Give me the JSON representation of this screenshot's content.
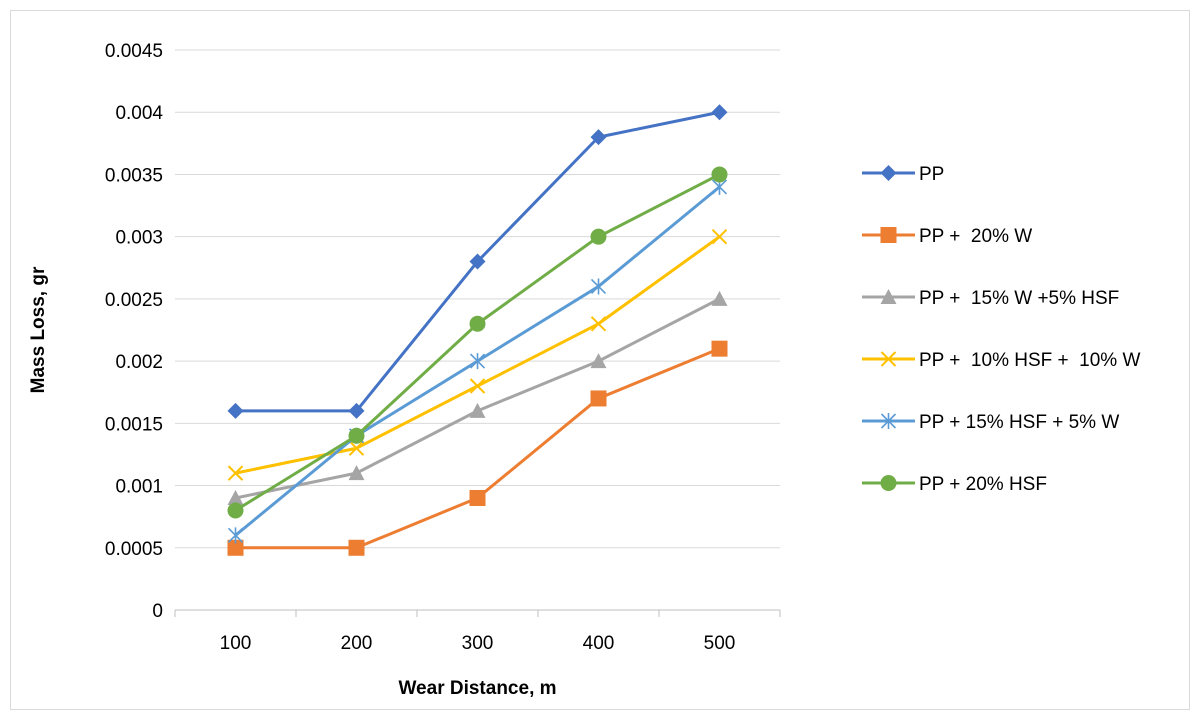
{
  "chart_data": {
    "type": "line",
    "title": "",
    "xlabel": "Wear Distance, m",
    "ylabel": "Mass Loss, gr",
    "categories": [
      "100",
      "200",
      "300",
      "400",
      "500"
    ],
    "y_ticks": [
      "0",
      "0.0005",
      "0.001",
      "0.0015",
      "0.002",
      "0.0025",
      "0.003",
      "0.0035",
      "0.004",
      "0.0045"
    ],
    "ylim": [
      0,
      0.0045
    ],
    "grid": true,
    "legend_position": "right",
    "series": [
      {
        "name": "PP",
        "values": [
          0.0016,
          0.0016,
          0.0028,
          0.0038,
          0.004
        ],
        "color": "#4472c4",
        "marker": "diamond"
      },
      {
        "name": "PP +  20% W",
        "values": [
          0.0005,
          0.0005,
          0.0009,
          0.0017,
          0.0021
        ],
        "color": "#ed7d31",
        "marker": "square"
      },
      {
        "name": "PP +  15% W +5% HSF",
        "values": [
          0.0009,
          0.0011,
          0.0016,
          0.002,
          0.0025
        ],
        "color": "#a5a5a5",
        "marker": "triangle"
      },
      {
        "name": "PP +  10% HSF +  10% W",
        "values": [
          0.0011,
          0.0013,
          0.0018,
          0.0023,
          0.003
        ],
        "color": "#ffc000",
        "marker": "x"
      },
      {
        "name": "PP + 15% HSF + 5% W",
        "values": [
          0.0006,
          0.0014,
          0.002,
          0.0026,
          0.0034
        ],
        "color": "#5b9bd5",
        "marker": "star"
      },
      {
        "name": "PP + 20% HSF",
        "values": [
          0.0008,
          0.0014,
          0.0023,
          0.003,
          0.0035
        ],
        "color": "#70ad47",
        "marker": "circle"
      }
    ]
  }
}
